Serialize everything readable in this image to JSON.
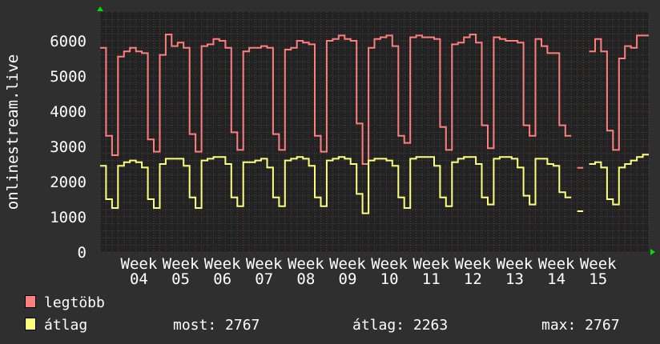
{
  "chart_data": {
    "type": "line",
    "ylabel": "onlinestream.live",
    "ylim": [
      0,
      6000
    ],
    "yticks": [
      "0",
      "1000",
      "2000",
      "3000",
      "4000",
      "5000",
      "6000"
    ],
    "xticks": [
      "Week 04",
      "Week 05",
      "Week 06",
      "Week 07",
      "Week 08",
      "Week 09",
      "Week 10",
      "Week 11",
      "Week 12",
      "Week 13",
      "Week 14",
      "Week 15"
    ],
    "grid": true,
    "x_unit": "day",
    "series": [
      {
        "name": "legtöbb",
        "color": "#ff7f7f",
        "values": [
          5800,
          3300,
          2750,
          5550,
          5700,
          5800,
          5700,
          5650,
          3200,
          2850,
          5600,
          6180,
          5850,
          5950,
          5800,
          3350,
          2850,
          5850,
          5900,
          6050,
          6000,
          5800,
          3400,
          2900,
          5700,
          5800,
          5800,
          5850,
          5800,
          3350,
          2900,
          5750,
          5800,
          6000,
          5950,
          5900,
          3300,
          2850,
          6000,
          6050,
          6150,
          6050,
          6000,
          3650,
          2500,
          5800,
          6050,
          6100,
          6150,
          5850,
          3300,
          3100,
          6100,
          6150,
          6100,
          6100,
          6050,
          3550,
          2900,
          5900,
          5950,
          6100,
          6180,
          5950,
          3600,
          2950,
          6100,
          6050,
          6000,
          6000,
          5950,
          3600,
          3300,
          6050,
          5850,
          5650,
          5650,
          3600,
          3300,
          null,
          2390,
          null,
          5700,
          6050,
          5700,
          3450,
          2900,
          5500,
          5850,
          5800,
          6150,
          6150
        ]
      },
      {
        "name": "átlag",
        "color": "#ffff7f",
        "values": [
          2450,
          1500,
          1250,
          2450,
          2550,
          2600,
          2550,
          2400,
          1500,
          1250,
          2500,
          2650,
          2650,
          2650,
          2450,
          1550,
          1250,
          2600,
          2650,
          2700,
          2700,
          2500,
          1550,
          1300,
          2550,
          2550,
          2600,
          2650,
          2400,
          1550,
          1300,
          2600,
          2650,
          2700,
          2650,
          2450,
          1550,
          1300,
          2600,
          2650,
          2700,
          2650,
          2500,
          1650,
          1100,
          2600,
          2650,
          2650,
          2600,
          2450,
          1550,
          1250,
          2650,
          2700,
          2700,
          2700,
          2450,
          1550,
          1300,
          2550,
          2650,
          2700,
          2700,
          2500,
          1550,
          1350,
          2650,
          2700,
          2700,
          2650,
          2400,
          1600,
          1350,
          2650,
          2650,
          2500,
          2450,
          1700,
          1550,
          null,
          1160,
          null,
          2500,
          2550,
          2400,
          1500,
          1350,
          2400,
          2500,
          2600,
          2700,
          2767
        ]
      }
    ]
  },
  "legend": {
    "items": [
      {
        "label": "legtöbb",
        "color": "#ff7f7f"
      },
      {
        "label": "átlag",
        "color": "#ffff7f"
      }
    ],
    "stats": {
      "now": "most: 2767",
      "avg": "átlag: 2263",
      "max": "max: 2767"
    }
  }
}
